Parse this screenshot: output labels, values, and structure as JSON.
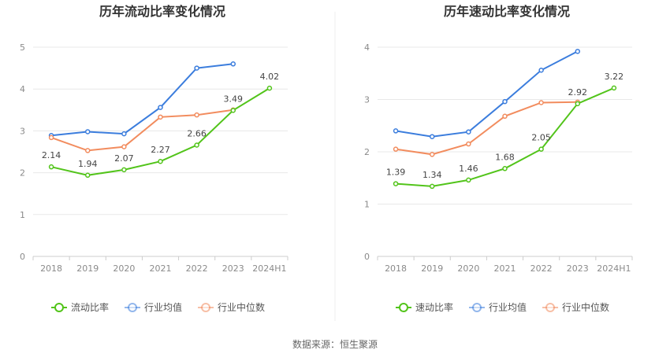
{
  "chart_data": [
    {
      "type": "line",
      "title": "历年流动比率变化情况",
      "categories": [
        "2018",
        "2019",
        "2020",
        "2021",
        "2022",
        "2023",
        "2024H1"
      ],
      "ylim": [
        0,
        5
      ],
      "yticks": [
        "0",
        "1",
        "2",
        "3",
        "4",
        "5"
      ],
      "grid": true,
      "legend_position": "bottom",
      "series": [
        {
          "name": "流动比率",
          "color": "#52c41a",
          "labeled": true,
          "values": [
            2.14,
            1.94,
            2.07,
            2.27,
            2.66,
            3.49,
            4.02
          ],
          "labels": [
            "2.14",
            "1.94",
            "2.07",
            "2.27",
            "2.66",
            "3.49",
            "4.02"
          ]
        },
        {
          "name": "行业均值",
          "color": "#3b7ddd",
          "labeled": false,
          "values": [
            2.89,
            2.98,
            2.93,
            3.56,
            4.5,
            4.6,
            null
          ]
        },
        {
          "name": "行业中位数",
          "color": "#f28c5e",
          "labeled": false,
          "values": [
            2.84,
            2.53,
            2.62,
            3.33,
            3.38,
            3.5,
            null
          ]
        }
      ]
    },
    {
      "type": "line",
      "title": "历年速动比率变化情况",
      "categories": [
        "2018",
        "2019",
        "2020",
        "2021",
        "2022",
        "2023",
        "2024H1"
      ],
      "ylim": [
        0,
        4
      ],
      "yticks": [
        "0",
        "1",
        "2",
        "3",
        "4"
      ],
      "grid": true,
      "legend_position": "bottom",
      "series": [
        {
          "name": "速动比率",
          "color": "#52c41a",
          "labeled": true,
          "values": [
            1.39,
            1.34,
            1.46,
            1.68,
            2.05,
            2.92,
            3.22
          ],
          "labels": [
            "1.39",
            "1.34",
            "1.46",
            "1.68",
            "2.05",
            "2.92",
            "3.22"
          ]
        },
        {
          "name": "行业均值",
          "color": "#3b7ddd",
          "labeled": false,
          "values": [
            2.4,
            2.29,
            2.38,
            2.96,
            3.56,
            3.92,
            null
          ]
        },
        {
          "name": "行业中位数",
          "color": "#f28c5e",
          "labeled": false,
          "values": [
            2.05,
            1.95,
            2.15,
            2.68,
            2.94,
            2.95,
            null
          ]
        }
      ]
    }
  ],
  "footer": {
    "source": "数据来源：恒生聚源"
  }
}
